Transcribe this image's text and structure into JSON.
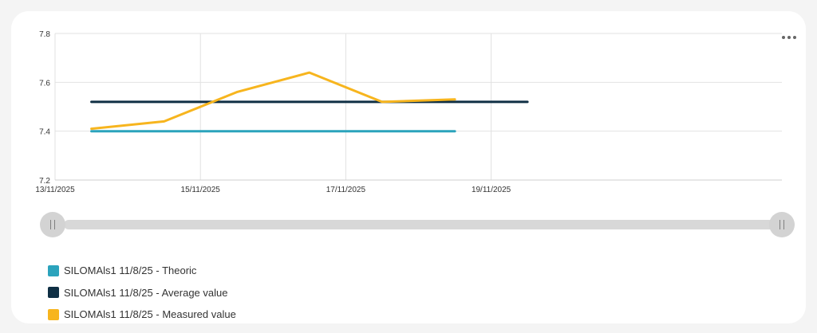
{
  "chart_data": {
    "type": "line",
    "x_type": "date",
    "xlim": [
      "2025-11-13",
      "2025-11-23"
    ],
    "ylim": [
      7.2,
      7.8
    ],
    "y_ticks": [
      "7.2",
      "7.4",
      "7.6",
      "7.8"
    ],
    "x_ticks": [
      {
        "date": "2025-11-13",
        "label": "13/11/2025"
      },
      {
        "date": "2025-11-15",
        "label": "15/11/2025"
      },
      {
        "date": "2025-11-17",
        "label": "17/11/2025"
      },
      {
        "date": "2025-11-19",
        "label": "19/11/2025"
      }
    ],
    "grid": true,
    "legend_position": "bottom-left",
    "series": [
      {
        "name": "SILOMAls1 11/8/25 - Theoric",
        "color": "#2ba3bc",
        "points": [
          {
            "x": "2025-11-13T12:00",
            "y": 7.4
          },
          {
            "x": "2025-11-18T12:00",
            "y": 7.4
          }
        ]
      },
      {
        "name": "SILOMAls1 11/8/25 - Average value",
        "color": "#0f2f44",
        "points": [
          {
            "x": "2025-11-13T12:00",
            "y": 7.52
          },
          {
            "x": "2025-11-19T12:00",
            "y": 7.52
          }
        ]
      },
      {
        "name": "SILOMAls1 11/8/25 - Measured value",
        "color": "#f7b51e",
        "points": [
          {
            "x": "2025-11-13T12:00",
            "y": 7.41
          },
          {
            "x": "2025-11-14T12:00",
            "y": 7.44
          },
          {
            "x": "2025-11-15T12:00",
            "y": 7.56
          },
          {
            "x": "2025-11-16T12:00",
            "y": 7.64
          },
          {
            "x": "2025-11-17T12:00",
            "y": 7.52
          },
          {
            "x": "2025-11-18T12:00",
            "y": 7.53
          }
        ]
      }
    ]
  },
  "menu": {
    "icon": "more-horizontal-icon"
  },
  "slider": {
    "start_icon": "drag-handle-icon",
    "end_icon": "drag-handle-icon"
  }
}
